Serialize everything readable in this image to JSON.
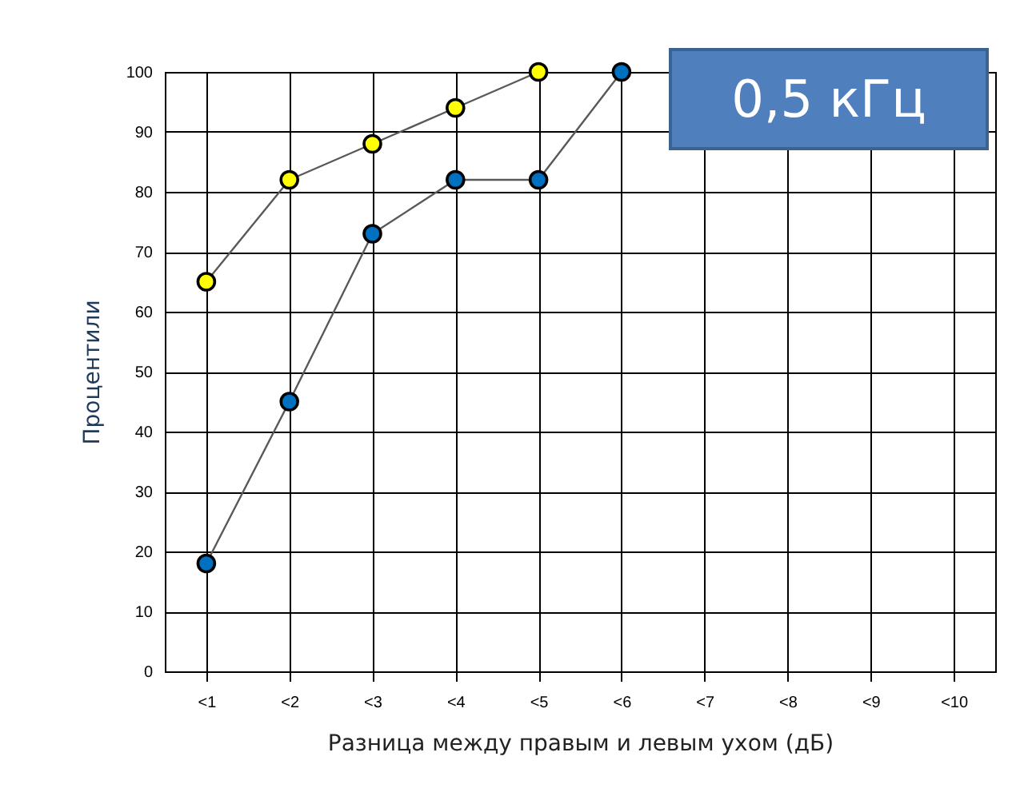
{
  "chart_data": {
    "type": "line",
    "xlabel": "Разница между правым и левым ухом (дБ)",
    "ylabel": "Процентили",
    "annotations": [
      "0,5 кГц"
    ],
    "categories": [
      "<1",
      "<2",
      "<3",
      "<4",
      "<5",
      "<6",
      "<7",
      "<8",
      "<9",
      "<10"
    ],
    "series": [
      {
        "color": "#ffff00",
        "values": [
          65,
          82,
          88,
          94,
          100,
          null,
          null,
          null,
          null,
          null
        ]
      },
      {
        "color": "#0070c0",
        "values": [
          18,
          45,
          73,
          82,
          82,
          100,
          null,
          null,
          null,
          null
        ]
      }
    ],
    "ylim": [
      0,
      100
    ],
    "yticks": [
      0,
      10,
      20,
      30,
      40,
      50,
      60,
      70,
      80,
      90,
      100
    ],
    "grid": true,
    "marker": "circle",
    "line_style": "solid",
    "legend": false
  }
}
